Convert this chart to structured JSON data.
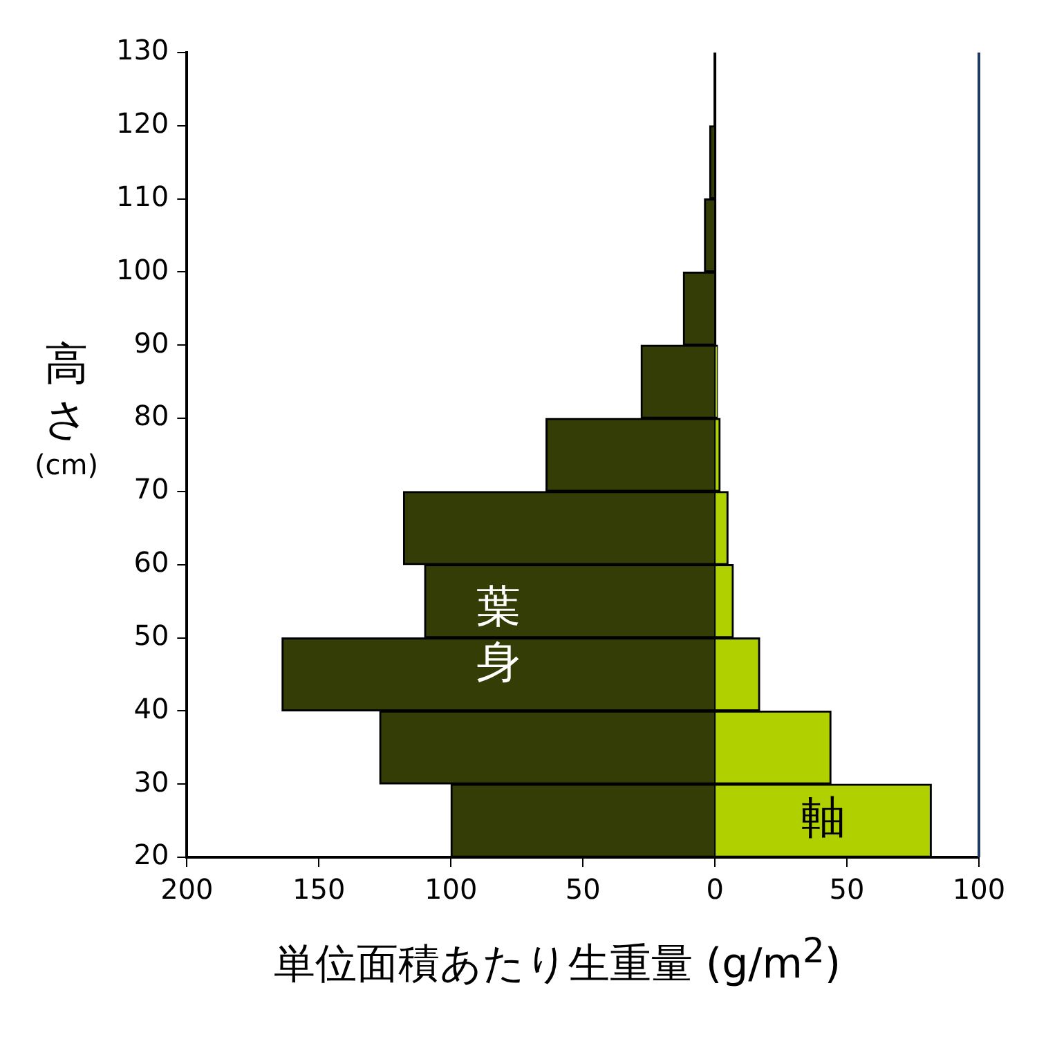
{
  "chart_data": {
    "type": "bar",
    "orientation": "horizontal",
    "stacked": true,
    "xlabel": "単位面積あたり生重量 (g/m$^{2}$)",
    "ylabel": "高さ (cm)",
    "x": [
      25,
      35,
      45,
      55,
      65,
      75,
      85,
      95,
      105,
      115
    ],
    "series": [
      {
        "name": "葉身",
        "color": "#333d05",
        "values": [
          -100,
          -127,
          -164,
          -110,
          -118,
          -64,
          -28,
          -12,
          -4,
          -2
        ]
      },
      {
        "name": "軸",
        "color": "#b0d000",
        "values": [
          82,
          44,
          17,
          7,
          5,
          2,
          1,
          0,
          0,
          0
        ]
      }
    ],
    "xlim": [
      -200,
      100
    ],
    "xticks": [
      {
        "value": -200,
        "label": "200"
      },
      {
        "value": -150,
        "label": "150"
      },
      {
        "value": -100,
        "label": "100"
      },
      {
        "value": -50,
        "label": "50"
      },
      0,
      50,
      100
    ],
    "ylim": [
      20,
      130
    ],
    "yticks": [
      20,
      30,
      40,
      50,
      60,
      70,
      80,
      90,
      100,
      110,
      120,
      130
    ],
    "ref_lines": [
      {
        "axis": "x",
        "value": 0,
        "color": "#000000"
      }
    ]
  }
}
